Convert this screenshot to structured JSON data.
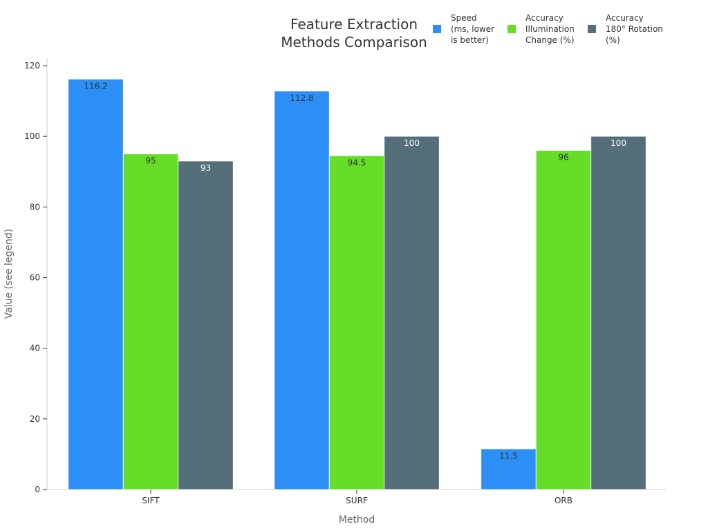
{
  "chart_data": {
    "type": "bar",
    "title_lines": [
      "Feature Extraction",
      "Methods Comparison"
    ],
    "xlabel": "Method",
    "ylabel": "Value (see legend)",
    "categories": [
      "SIFT",
      "SURF",
      "ORB"
    ],
    "ylim": [
      0,
      125
    ],
    "yticks": [
      0,
      20,
      40,
      60,
      80,
      100,
      120
    ],
    "grid": false,
    "legend_position": "top-right",
    "series": [
      {
        "name": "Speed (ms, lower is better)",
        "legend_lines": [
          "Speed",
          "(ms, lower",
          "is better)"
        ],
        "color": "#2b8ff7",
        "label_color": "#333333",
        "values": [
          116.2,
          112.8,
          11.5
        ],
        "labels": [
          "116.2",
          "112.8",
          "11.5"
        ]
      },
      {
        "name": "Accuracy Illumination Change (%)",
        "legend_lines": [
          "Accuracy",
          "Illumination",
          "Change (%)"
        ],
        "color": "#66dd27",
        "label_color": "#333333",
        "values": [
          95,
          94.5,
          96
        ],
        "labels": [
          "95",
          "94.5",
          "96"
        ]
      },
      {
        "name": "Accuracy 180° Rotation (%)",
        "legend_lines": [
          "Accuracy",
          "180° Rotation",
          "(%)"
        ],
        "color": "#546e7a",
        "label_color": "#ffffff",
        "values": [
          93,
          100,
          100
        ],
        "labels": [
          "93",
          "100",
          "100"
        ]
      }
    ]
  }
}
